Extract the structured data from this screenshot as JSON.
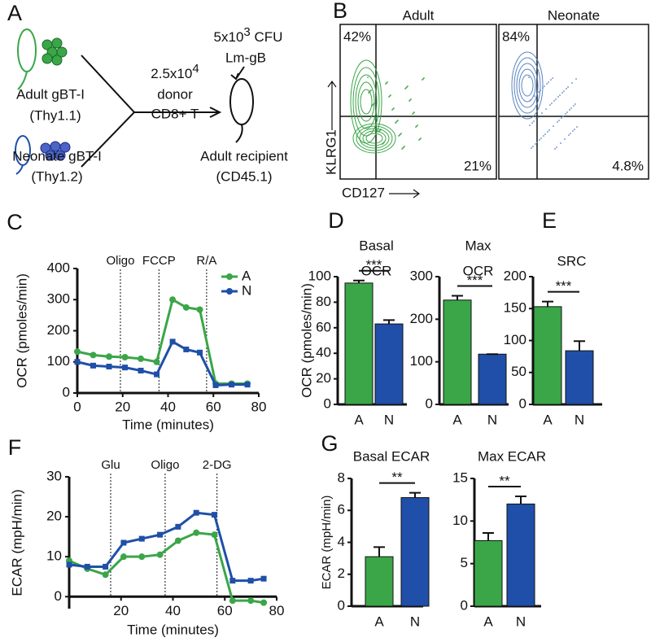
{
  "panel_labels": [
    "A",
    "B",
    "C",
    "D",
    "E",
    "F",
    "G"
  ],
  "diagram": {
    "donor_adult": "Adult gBT-I",
    "donor_adult_strain": "(Thy1.1)",
    "donor_neonate": "Neonate gBT-I",
    "donor_neonate_strain": "(Thy1.2)",
    "transfer_count": {
      "base": "2.5x10",
      "exp": "4"
    },
    "transfer_line2": "donor",
    "transfer_line3": "CD8+ T",
    "infection_dose": {
      "base": "5x10",
      "exp": "3",
      "rest": " CFU"
    },
    "infection_strain": "Lm-gB",
    "recipient": "Adult recipient",
    "recipient_strain": "(CD45.1)"
  },
  "flow": {
    "plots": [
      {
        "title": "Adult",
        "upper_left": "42%",
        "lower_right": "21%"
      },
      {
        "title": "Neonate",
        "upper_left": "84%",
        "lower_right": "4.8%"
      }
    ],
    "ylabel": "KLRG1",
    "xlabel": "CD127"
  },
  "chart_data": [
    {
      "type": "line",
      "xlabel": "Time (minutes)",
      "ylabel": "OCR (pmoles/min)",
      "x": [
        0,
        7,
        14,
        21,
        28,
        35,
        42,
        48,
        54,
        61,
        68,
        75
      ],
      "xlim": [
        0,
        80
      ],
      "xticks": [
        0,
        20,
        40,
        60,
        80
      ],
      "ylim": [
        0,
        400
      ],
      "yticks": [
        0,
        100,
        200,
        300,
        400
      ],
      "vlines": [
        {
          "x": 19,
          "label": "Oligo"
        },
        {
          "x": 36,
          "label": "FCCP"
        },
        {
          "x": 57,
          "label": "R/A"
        }
      ],
      "legend": "upper right",
      "series": [
        {
          "name": "A",
          "color": "#3aa648",
          "marker": "circle",
          "values": [
            133,
            122,
            117,
            115,
            110,
            100,
            300,
            275,
            268,
            30,
            30,
            30
          ]
        },
        {
          "name": "N",
          "color": "#1f4fa8",
          "marker": "square",
          "values": [
            100,
            88,
            85,
            82,
            72,
            60,
            165,
            140,
            130,
            25,
            27,
            27
          ]
        }
      ]
    },
    {
      "type": "bar",
      "title": [
        "Basal",
        "OCR"
      ],
      "ylabel": "OCR (pmoles/min)",
      "categories": [
        "A",
        "N"
      ],
      "values": [
        95,
        63
      ],
      "errors": [
        2,
        3
      ],
      "colors": [
        "#3aa648",
        "#1f4fa8"
      ],
      "ylim": [
        0,
        100
      ],
      "yticks": [
        0,
        20,
        40,
        60,
        80,
        100
      ],
      "significance": "***"
    },
    {
      "type": "bar",
      "title": [
        "Max",
        "OCR"
      ],
      "categories": [
        "A",
        "N"
      ],
      "values": [
        245,
        118
      ],
      "errors": [
        10,
        0
      ],
      "colors": [
        "#3aa648",
        "#1f4fa8"
      ],
      "ylim": [
        0,
        300
      ],
      "yticks": [
        0,
        100,
        200,
        300
      ],
      "significance": "***"
    },
    {
      "type": "bar",
      "title": [
        "SRC"
      ],
      "categories": [
        "A",
        "N"
      ],
      "values": [
        153,
        84
      ],
      "errors": [
        8,
        15
      ],
      "colors": [
        "#3aa648",
        "#1f4fa8"
      ],
      "ylim": [
        0,
        200
      ],
      "yticks": [
        0,
        50,
        100,
        150,
        200
      ],
      "significance": "***"
    },
    {
      "type": "line",
      "xlabel": "Time (minutes)",
      "ylabel": "ECAR (mpH/min)",
      "x": [
        0,
        7,
        14,
        21,
        28,
        35,
        42,
        49,
        56,
        63,
        70,
        75
      ],
      "xlim": [
        0,
        80
      ],
      "xticks": [
        20,
        40,
        60,
        80
      ],
      "ylim": [
        -3,
        30
      ],
      "yticks": [
        0,
        10,
        20,
        30
      ],
      "vlines": [
        {
          "x": 16,
          "label": "Glu"
        },
        {
          "x": 37,
          "label": "Oligo"
        },
        {
          "x": 57,
          "label": "2-DG"
        }
      ],
      "series": [
        {
          "name": "A",
          "color": "#3aa648",
          "marker": "circle",
          "values": [
            9,
            7,
            5.5,
            10,
            10,
            10.5,
            14,
            16,
            15.5,
            -1,
            -1,
            -1.5
          ]
        },
        {
          "name": "N",
          "color": "#1f4fa8",
          "marker": "square",
          "values": [
            8,
            7.5,
            7.5,
            13.5,
            14.5,
            15.5,
            17.5,
            21,
            20.5,
            4,
            4,
            4.5
          ]
        }
      ]
    },
    {
      "type": "bar",
      "title": [
        "Basal ECAR"
      ],
      "ylabel": "ECAR (mpH/min)",
      "categories": [
        "A",
        "N"
      ],
      "values": [
        3.1,
        6.8
      ],
      "errors": [
        0.6,
        0.3
      ],
      "colors": [
        "#3aa648",
        "#1f4fa8"
      ],
      "ylim": [
        0,
        8
      ],
      "yticks": [
        0,
        2,
        4,
        6,
        8
      ],
      "significance": "**"
    },
    {
      "type": "bar",
      "title": [
        "Max ECAR"
      ],
      "categories": [
        "A",
        "N"
      ],
      "values": [
        7.7,
        12
      ],
      "errors": [
        0.9,
        0.9
      ],
      "colors": [
        "#3aa648",
        "#1f4fa8"
      ],
      "ylim": [
        0,
        15
      ],
      "yticks": [
        0,
        5,
        10,
        15
      ],
      "significance": "**"
    }
  ]
}
